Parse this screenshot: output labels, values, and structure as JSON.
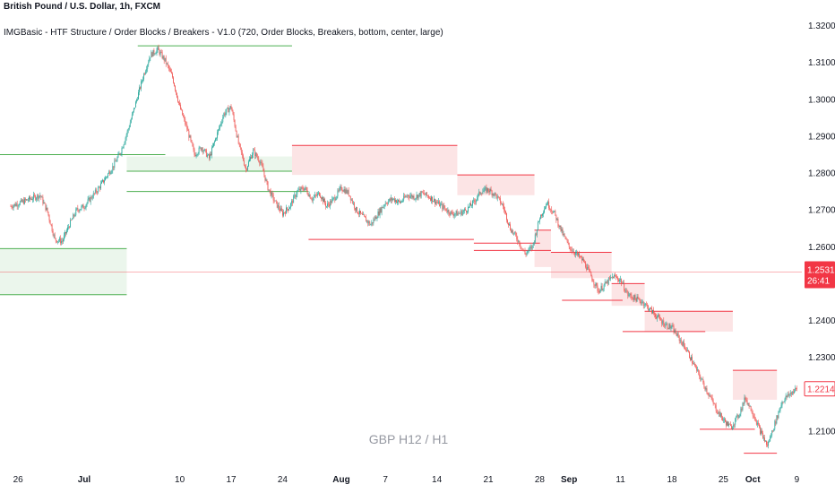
{
  "header": {
    "title": "British Pound / U.S. Dollar, 1h, FXCM",
    "indicator": "IMGBasic - HTF Structure / Order Blocks / Breakers - V1.0 (720, Order Blocks, Breakers, bottom, center, large)"
  },
  "watermark": "GBP H12 / H1",
  "colors": {
    "background": "#ffffff",
    "bull_line": "#4caf50",
    "bull_zone": "#e8f5e9",
    "bear_line": "#f23645",
    "bear_zone": "#fcdfe1",
    "candle_up": "#26a69a",
    "candle_down": "#ef5350",
    "price_label": "#f23645",
    "axis_text": "#131722"
  },
  "chart_data": {
    "type": "candlestick",
    "symbol": "GBPUSD",
    "timeframe": "1h",
    "ylim": [
      1.2005,
      1.325
    ],
    "y_ticks": [
      {
        "value": 1.32,
        "label": "1.32000"
      },
      {
        "value": 1.31,
        "label": "1.31000"
      },
      {
        "value": 1.3,
        "label": "1.30000"
      },
      {
        "value": 1.29,
        "label": "1.29000"
      },
      {
        "value": 1.28,
        "label": "1.28000"
      },
      {
        "value": 1.27,
        "label": "1.27000"
      },
      {
        "value": 1.26,
        "label": "1.26000"
      },
      {
        "value": 1.24,
        "label": "1.24000"
      },
      {
        "value": 1.23,
        "label": "1.23000"
      },
      {
        "value": 1.21,
        "label": "1.21000"
      }
    ],
    "xlim": [
      0,
      108
    ],
    "x_ticks": [
      {
        "day": 1,
        "label": "26",
        "bold": false
      },
      {
        "day": 10,
        "label": "Jul",
        "bold": true
      },
      {
        "day": 23,
        "label": "10",
        "bold": false
      },
      {
        "day": 30,
        "label": "17",
        "bold": false
      },
      {
        "day": 37,
        "label": "24",
        "bold": false
      },
      {
        "day": 45,
        "label": "Aug",
        "bold": true
      },
      {
        "day": 51,
        "label": "7",
        "bold": false
      },
      {
        "day": 58,
        "label": "14",
        "bold": false
      },
      {
        "day": 65,
        "label": "21",
        "bold": false
      },
      {
        "day": 72,
        "label": "28",
        "bold": false
      },
      {
        "day": 76,
        "label": "Sep",
        "bold": true
      },
      {
        "day": 83,
        "label": "11",
        "bold": false
      },
      {
        "day": 90,
        "label": "18",
        "bold": false
      },
      {
        "day": 97,
        "label": "25",
        "bold": false
      },
      {
        "day": 101,
        "label": "Oct",
        "bold": true
      },
      {
        "day": 107,
        "label": "9",
        "bold": false
      }
    ],
    "price_path": [
      [
        0,
        1.271
      ],
      [
        2,
        1.2725
      ],
      [
        4,
        1.274
      ],
      [
        5,
        1.2695
      ],
      [
        6,
        1.262
      ],
      [
        7,
        1.2615
      ],
      [
        8,
        1.266
      ],
      [
        9,
        1.27
      ],
      [
        10,
        1.271
      ],
      [
        11,
        1.2735
      ],
      [
        12,
        1.276
      ],
      [
        13,
        1.279
      ],
      [
        14,
        1.282
      ],
      [
        15,
        1.286
      ],
      [
        16,
        1.292
      ],
      [
        17,
        1.299
      ],
      [
        18,
        1.306
      ],
      [
        19,
        1.312
      ],
      [
        20,
        1.3135
      ],
      [
        21,
        1.3105
      ],
      [
        22,
        1.306
      ],
      [
        23,
        1.298
      ],
      [
        24,
        1.292
      ],
      [
        25,
        1.285
      ],
      [
        26,
        1.287
      ],
      [
        27,
        1.284
      ],
      [
        28,
        1.29
      ],
      [
        29,
        1.296
      ],
      [
        30,
        1.298
      ],
      [
        31,
        1.288
      ],
      [
        32,
        1.281
      ],
      [
        33,
        1.286
      ],
      [
        34,
        1.283
      ],
      [
        35,
        1.276
      ],
      [
        36,
        1.272
      ],
      [
        37,
        1.269
      ],
      [
        38,
        1.271
      ],
      [
        39,
        1.275
      ],
      [
        40,
        1.276
      ],
      [
        41,
        1.273
      ],
      [
        42,
        1.2745
      ],
      [
        43,
        1.271
      ],
      [
        44,
        1.273
      ],
      [
        45,
        1.276
      ],
      [
        46,
        1.2745
      ],
      [
        47,
        1.27
      ],
      [
        48,
        1.268
      ],
      [
        49,
        1.266
      ],
      [
        50,
        1.269
      ],
      [
        51,
        1.272
      ],
      [
        52,
        1.273
      ],
      [
        53,
        1.272
      ],
      [
        54,
        1.274
      ],
      [
        55,
        1.2735
      ],
      [
        56,
        1.2745
      ],
      [
        57,
        1.2735
      ],
      [
        58,
        1.272
      ],
      [
        59,
        1.2705
      ],
      [
        60,
        1.269
      ],
      [
        61,
        1.269
      ],
      [
        62,
        1.27
      ],
      [
        63,
        1.272
      ],
      [
        64,
        1.275
      ],
      [
        65,
        1.2755
      ],
      [
        66,
        1.274
      ],
      [
        67,
        1.271
      ],
      [
        68,
        1.265
      ],
      [
        69,
        1.262
      ],
      [
        70,
        1.258
      ],
      [
        71,
        1.26
      ],
      [
        72,
        1.268
      ],
      [
        73,
        1.272
      ],
      [
        74,
        1.269
      ],
      [
        75,
        1.264
      ],
      [
        76,
        1.26
      ],
      [
        77,
        1.258
      ],
      [
        78,
        1.256
      ],
      [
        79,
        1.252
      ],
      [
        80,
        1.248
      ],
      [
        81,
        1.25
      ],
      [
        82,
        1.252
      ],
      [
        83,
        1.251
      ],
      [
        84,
        1.247
      ],
      [
        85,
        1.246
      ],
      [
        86,
        1.245
      ],
      [
        87,
        1.243
      ],
      [
        88,
        1.241
      ],
      [
        89,
        1.239
      ],
      [
        90,
        1.238
      ],
      [
        91,
        1.235
      ],
      [
        92,
        1.232
      ],
      [
        93,
        1.228
      ],
      [
        94,
        1.224
      ],
      [
        95,
        1.22
      ],
      [
        96,
        1.216
      ],
      [
        97,
        1.213
      ],
      [
        98,
        1.211
      ],
      [
        99,
        1.214
      ],
      [
        100,
        1.219
      ],
      [
        101,
        1.215
      ],
      [
        102,
        1.21
      ],
      [
        103,
        1.206
      ],
      [
        104,
        1.212
      ],
      [
        105,
        1.218
      ],
      [
        106,
        1.22
      ],
      [
        107,
        1.2215
      ]
    ],
    "order_blocks": [
      {
        "side": "bull",
        "x0": 0,
        "x1": 23,
        "top": 1.2595,
        "bottom": 1.247,
        "upper_line": true,
        "lower_line": true
      },
      {
        "side": "bull",
        "x0": 23,
        "x1": 53,
        "top": 1.2845,
        "bottom": 1.2805,
        "upper_line": false,
        "lower_line": true
      },
      {
        "side": "bear",
        "x0": 53,
        "x1": 83,
        "top": 1.2875,
        "bottom": 1.2795,
        "upper_line": true,
        "lower_line": false
      },
      {
        "side": "bear",
        "x0": 83,
        "x1": 97,
        "top": 1.2795,
        "bottom": 1.274,
        "upper_line": true,
        "lower_line": false
      },
      {
        "side": "bear",
        "x0": 97,
        "x1": 100,
        "top": 1.2645,
        "bottom": 1.2545,
        "upper_line": true,
        "lower_line": false
      },
      {
        "side": "bear",
        "x0": 100,
        "x1": 111,
        "top": 1.2585,
        "bottom": 1.2515,
        "upper_line": true,
        "lower_line": false
      },
      {
        "side": "bear",
        "x0": 111,
        "x1": 117,
        "top": 1.25,
        "bottom": 1.244,
        "upper_line": true,
        "lower_line": false
      },
      {
        "side": "bear",
        "x0": 117,
        "x1": 133,
        "top": 1.2425,
        "bottom": 1.237,
        "upper_line": true,
        "lower_line": false
      },
      {
        "side": "bear",
        "x0": 133,
        "x1": 141,
        "top": 1.2265,
        "bottom": 1.2185,
        "upper_line": true,
        "lower_line": false
      }
    ],
    "levels": [
      {
        "side": "bull",
        "x0": 0,
        "x1": 30,
        "value": 1.285
      },
      {
        "side": "bull",
        "x0": 25,
        "x1": 53,
        "value": 1.3145
      },
      {
        "side": "bull",
        "x0": 23,
        "x1": 56,
        "value": 1.275
      },
      {
        "side": "bear",
        "x0": 56,
        "x1": 86,
        "value": 1.262
      },
      {
        "side": "bear",
        "x0": 86,
        "x1": 98,
        "value": 1.261
      },
      {
        "side": "bear",
        "x0": 86,
        "x1": 100,
        "value": 1.259
      },
      {
        "side": "bear",
        "x0": 102,
        "x1": 113,
        "value": 1.2455
      },
      {
        "side": "bear",
        "x0": 113,
        "x1": 128,
        "value": 1.237
      },
      {
        "side": "bear",
        "x0": 127,
        "x1": 137,
        "value": 1.2105
      },
      {
        "side": "bear",
        "x0": 135,
        "x1": 141,
        "value": 1.204
      }
    ],
    "current_price": {
      "value": 1.25313,
      "label": "1.25313",
      "countdown": "26:41"
    },
    "last_close": {
      "value": 1.22146,
      "label": "1.22146"
    }
  }
}
